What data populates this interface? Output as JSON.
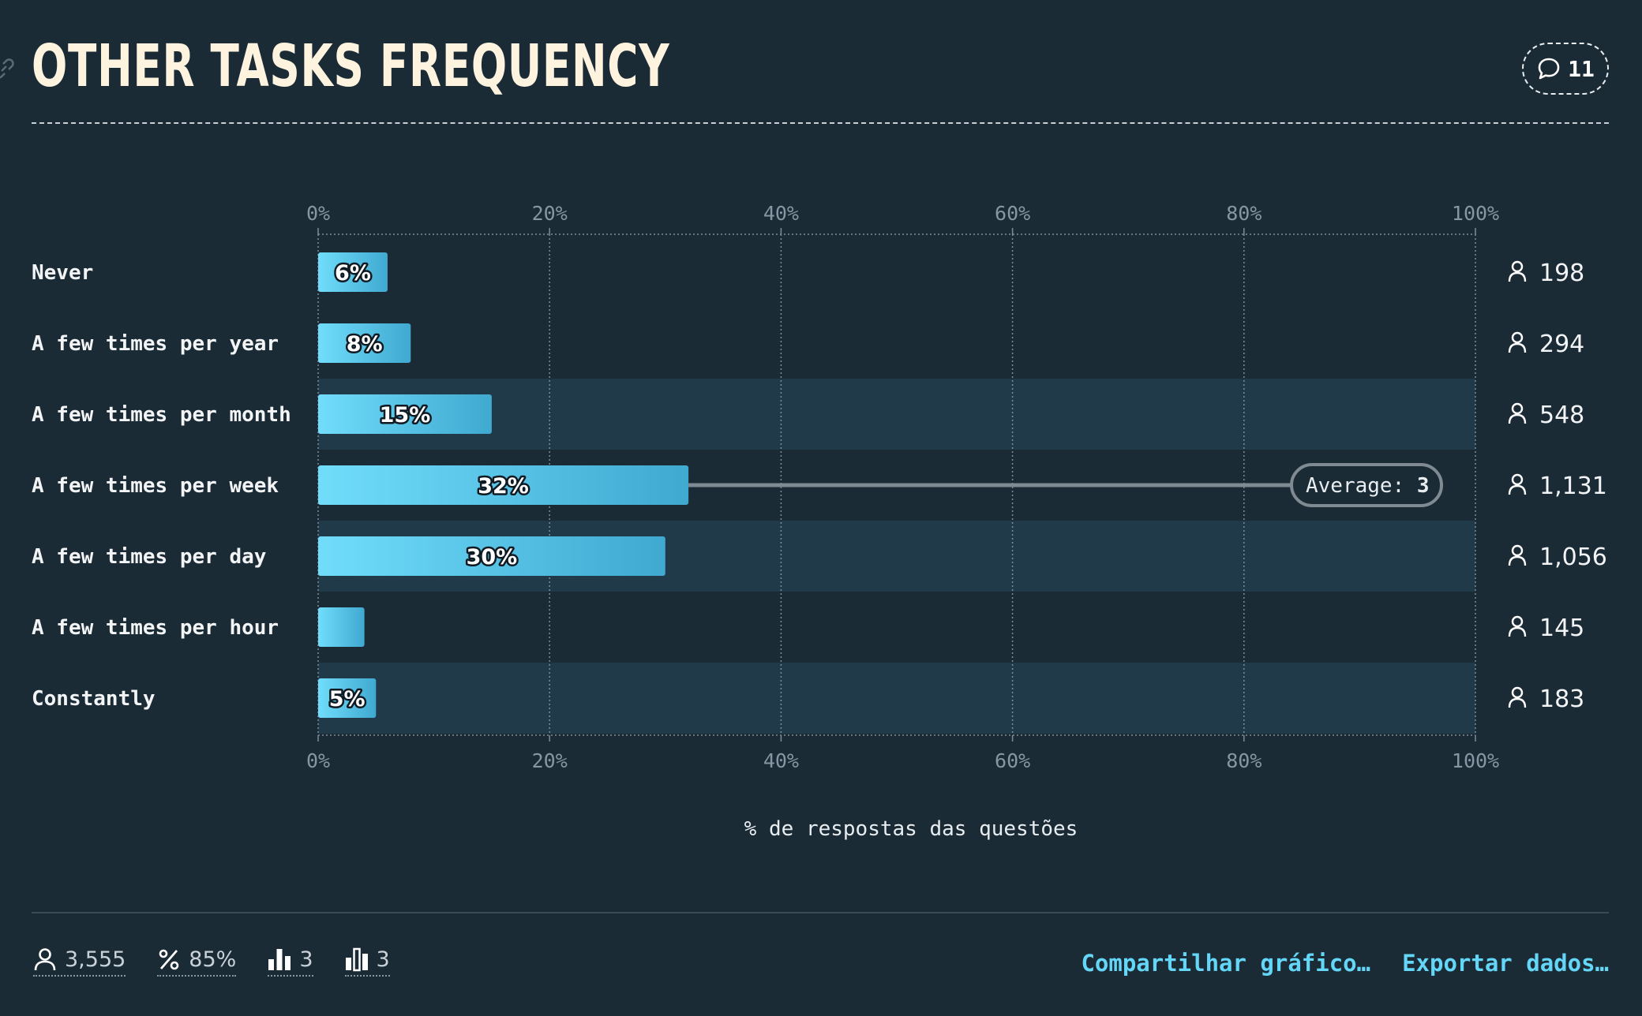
{
  "header": {
    "title": "OTHER TASKS FREQUENCY",
    "comment_count": "11"
  },
  "chart_data": {
    "type": "bar",
    "orientation": "horizontal",
    "categories": [
      "Never",
      "A few times per year",
      "A few times per month",
      "A few times per week",
      "A few times per day",
      "A few times per hour",
      "Constantly"
    ],
    "values": [
      6,
      8,
      15,
      32,
      30,
      4,
      5
    ],
    "value_labels": [
      "6%",
      "8%",
      "15%",
      "32%",
      "30%",
      "",
      "5%"
    ],
    "counts": [
      "198",
      "294",
      "548",
      "1,131",
      "1,056",
      "145",
      "183"
    ],
    "xticks": [
      "0%",
      "20%",
      "40%",
      "60%",
      "80%",
      "100%"
    ],
    "xlim": [
      0,
      100
    ],
    "xlabel": "% de respostas das questões",
    "average": {
      "label": "Average:",
      "value": "3",
      "category_index": 3
    },
    "grid": true,
    "colors": {
      "bar_start": "#71ddfb",
      "bar_end": "#3fa9d0",
      "band": "#213a4a",
      "grid": "#7c8c98",
      "average_line": "#7f8a92"
    }
  },
  "footer": {
    "stats": {
      "respondents": "3,555",
      "percent": "85%",
      "median": "3",
      "average": "3"
    },
    "share_label": "Compartilhar gráfico…",
    "export_label": "Exportar dados…"
  }
}
